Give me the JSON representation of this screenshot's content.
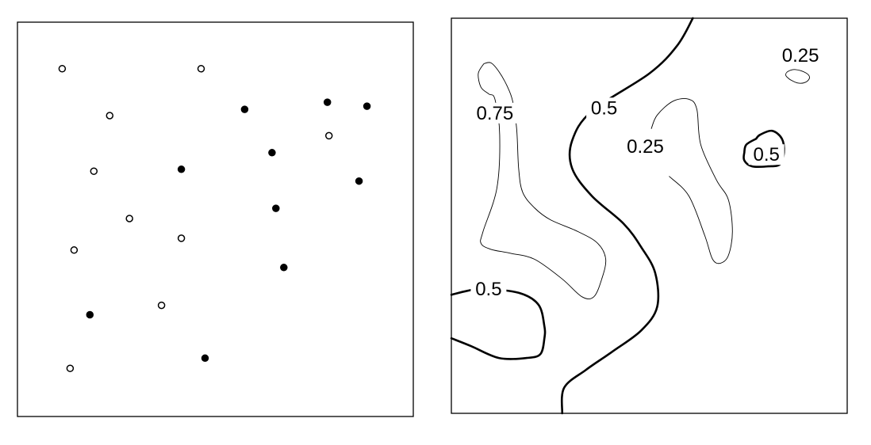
{
  "chart_data": [
    {
      "type": "scatter",
      "xlim": [
        0,
        1
      ],
      "ylim": [
        0,
        1
      ],
      "axes": false,
      "grid": false,
      "legend": "none",
      "series": [
        {
          "marker": "open",
          "points": [
            {
              "x": 0.113,
              "y": 0.882
            },
            {
              "x": 0.464,
              "y": 0.882
            },
            {
              "x": 0.233,
              "y": 0.763
            },
            {
              "x": 0.787,
              "y": 0.712
            },
            {
              "x": 0.193,
              "y": 0.622
            },
            {
              "x": 0.283,
              "y": 0.502
            },
            {
              "x": 0.414,
              "y": 0.452
            },
            {
              "x": 0.143,
              "y": 0.422
            },
            {
              "x": 0.364,
              "y": 0.282
            },
            {
              "x": 0.133,
              "y": 0.122
            }
          ]
        },
        {
          "marker": "filled",
          "points": [
            {
              "x": 0.574,
              "y": 0.779
            },
            {
              "x": 0.783,
              "y": 0.797
            },
            {
              "x": 0.883,
              "y": 0.787
            },
            {
              "x": 0.643,
              "y": 0.669
            },
            {
              "x": 0.414,
              "y": 0.627
            },
            {
              "x": 0.863,
              "y": 0.597
            },
            {
              "x": 0.653,
              "y": 0.528
            },
            {
              "x": 0.673,
              "y": 0.378
            },
            {
              "x": 0.183,
              "y": 0.258
            },
            {
              "x": 0.474,
              "y": 0.148
            }
          ]
        }
      ]
    },
    {
      "type": "contour",
      "xlim": [
        0,
        1
      ],
      "ylim": [
        0,
        1
      ],
      "axes": false,
      "grid": false,
      "levels": [
        0.25,
        0.5,
        0.75
      ],
      "labels": [
        {
          "text": "0.75",
          "x": 0.11,
          "y": 0.76
        },
        {
          "text": "0.5",
          "x": 0.386,
          "y": 0.773
        },
        {
          "text": "0.25",
          "x": 0.49,
          "y": 0.675
        },
        {
          "text": "0.25",
          "x": 0.882,
          "y": 0.906
        },
        {
          "text": "0.5",
          "x": 0.796,
          "y": 0.655
        },
        {
          "text": "0.5",
          "x": 0.094,
          "y": 0.315
        }
      ],
      "contours": [
        {
          "level": 0.75,
          "points": [
            [
              0.082,
              0.885
            ],
            [
              0.068,
              0.86
            ],
            [
              0.075,
              0.825
            ],
            [
              0.095,
              0.808
            ],
            [
              0.11,
              0.795
            ],
            [
              0.122,
              0.705
            ],
            [
              0.115,
              0.57
            ],
            [
              0.08,
              0.46
            ],
            [
              0.075,
              0.43
            ],
            [
              0.1,
              0.415
            ],
            [
              0.15,
              0.405
            ],
            [
              0.21,
              0.39
            ],
            [
              0.28,
              0.34
            ],
            [
              0.33,
              0.295
            ],
            [
              0.36,
              0.295
            ],
            [
              0.38,
              0.34
            ],
            [
              0.39,
              0.39
            ],
            [
              0.37,
              0.43
            ],
            [
              0.32,
              0.46
            ],
            [
              0.25,
              0.49
            ],
            [
              0.21,
              0.52
            ],
            [
              0.18,
              0.56
            ],
            [
              0.17,
              0.62
            ],
            [
              0.165,
              0.72
            ],
            [
              0.155,
              0.79
            ],
            [
              0.14,
              0.83
            ],
            [
              0.12,
              0.865
            ],
            [
              0.1,
              0.887
            ],
            [
              0.082,
              0.885
            ]
          ]
        },
        {
          "level": 0.5,
          "points": [
            [
              0.61,
              1.0
            ],
            [
              0.57,
              0.93
            ],
            [
              0.5,
              0.86
            ],
            [
              0.355,
              0.765
            ],
            [
              0.305,
              0.69
            ],
            [
              0.305,
              0.62
            ],
            [
              0.355,
              0.55
            ],
            [
              0.435,
              0.48
            ],
            [
              0.48,
              0.42
            ],
            [
              0.515,
              0.355
            ],
            [
              0.52,
              0.27
            ],
            [
              0.48,
              0.21
            ],
            [
              0.405,
              0.155
            ],
            [
              0.34,
              0.11
            ],
            [
              0.285,
              0.065
            ],
            [
              0.28,
              0.0
            ]
          ]
        },
        {
          "level": 0.5,
          "points": [
            [
              0.0,
              0.3
            ],
            [
              0.04,
              0.31
            ],
            [
              0.08,
              0.315
            ],
            [
              0.17,
              0.305
            ],
            [
              0.22,
              0.275
            ],
            [
              0.235,
              0.22
            ],
            [
              0.235,
              0.19
            ],
            [
              0.225,
              0.15
            ],
            [
              0.19,
              0.14
            ],
            [
              0.12,
              0.14
            ],
            [
              0.05,
              0.17
            ],
            [
              0.0,
              0.19
            ]
          ]
        },
        {
          "level": 0.5,
          "points": [
            [
              0.77,
              0.695
            ],
            [
              0.745,
              0.68
            ],
            [
              0.74,
              0.66
            ],
            [
              0.74,
              0.64
            ],
            [
              0.76,
              0.625
            ],
            [
              0.8,
              0.625
            ],
            [
              0.83,
              0.63
            ],
            [
              0.84,
              0.66
            ],
            [
              0.835,
              0.695
            ],
            [
              0.81,
              0.715
            ],
            [
              0.78,
              0.705
            ],
            [
              0.77,
              0.695
            ]
          ]
        },
        {
          "level": 0.25,
          "points": [
            [
              0.505,
              0.72
            ],
            [
              0.52,
              0.755
            ],
            [
              0.56,
              0.79
            ],
            [
              0.6,
              0.795
            ],
            [
              0.62,
              0.77
            ],
            [
              0.63,
              0.68
            ],
            [
              0.67,
              0.59
            ],
            [
              0.7,
              0.54
            ],
            [
              0.71,
              0.46
            ],
            [
              0.7,
              0.4
            ],
            [
              0.68,
              0.38
            ],
            [
              0.66,
              0.39
            ],
            [
              0.64,
              0.45
            ],
            [
              0.6,
              0.55
            ],
            [
              0.55,
              0.6
            ]
          ]
        },
        {
          "level": 0.25,
          "points": [
            [
              0.855,
              0.845
            ],
            [
              0.845,
              0.855
            ],
            [
              0.85,
              0.865
            ],
            [
              0.87,
              0.87
            ],
            [
              0.895,
              0.862
            ],
            [
              0.905,
              0.85
            ],
            [
              0.895,
              0.838
            ],
            [
              0.875,
              0.836
            ],
            [
              0.855,
              0.845
            ]
          ]
        }
      ]
    }
  ]
}
